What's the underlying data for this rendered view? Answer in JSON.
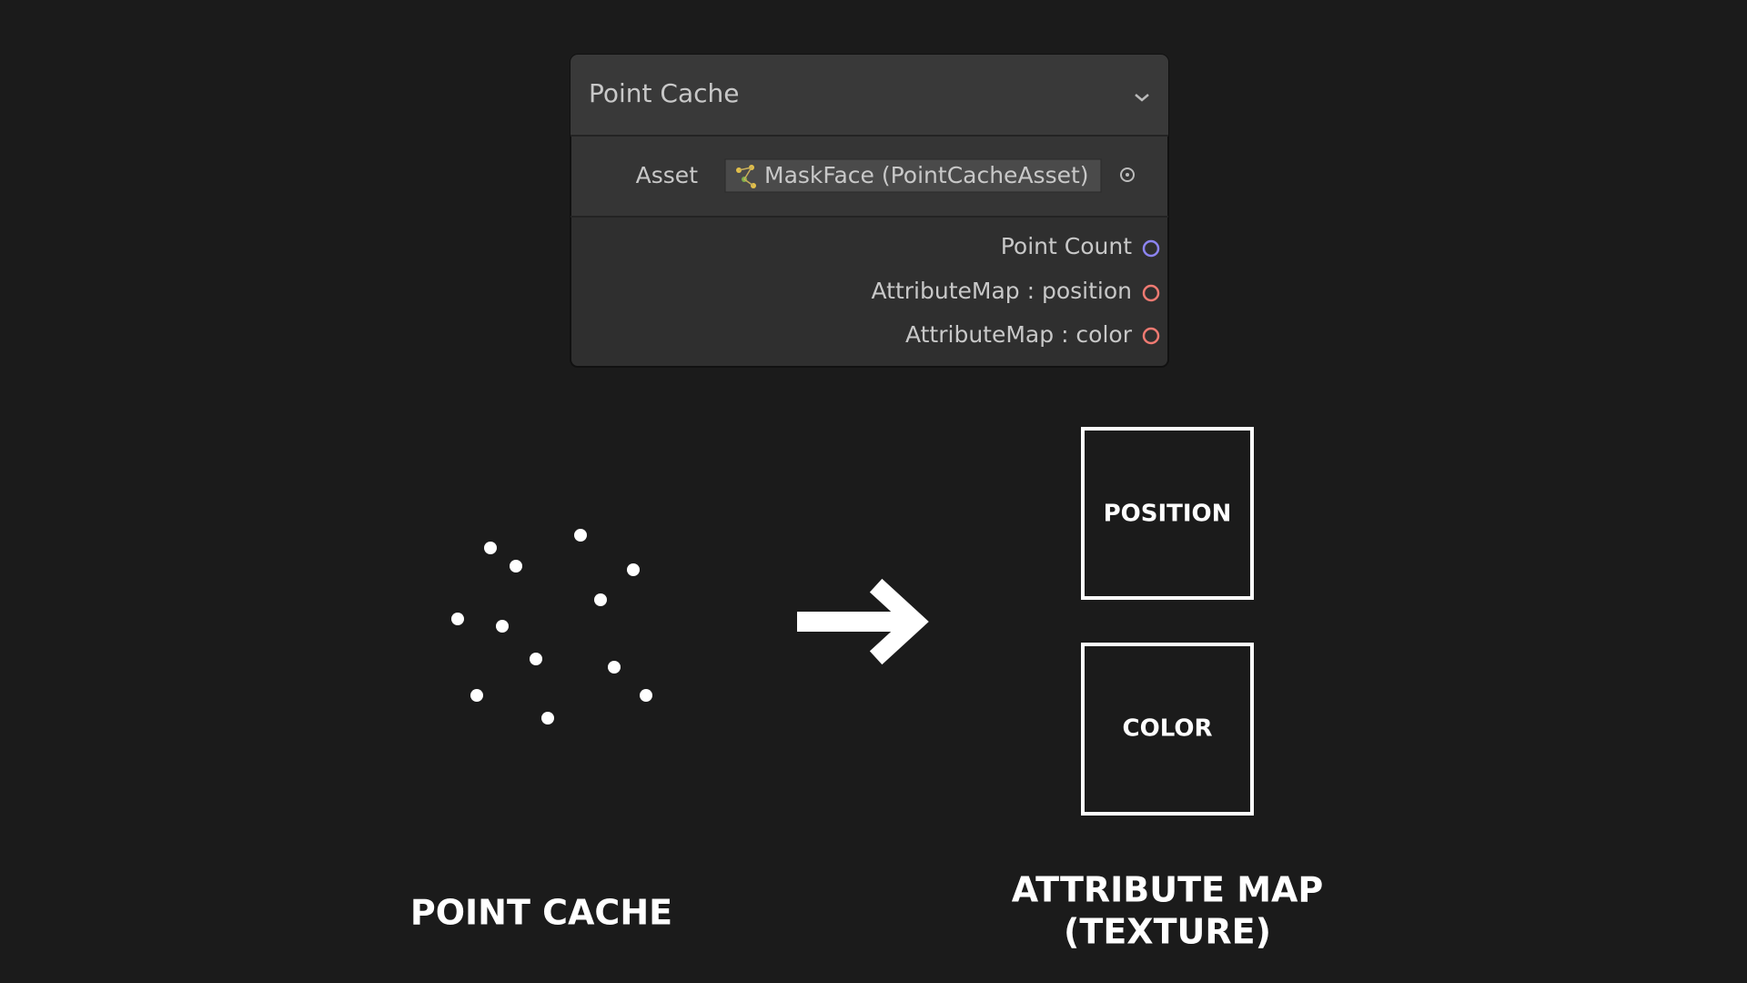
{
  "node": {
    "title": "Point Cache",
    "asset_label": "Asset",
    "asset_value": "MaskFace (PointCacheAsset)",
    "outputs": [
      "Point Count",
      "AttributeMap : position",
      "AttributeMap : color"
    ]
  },
  "diagram": {
    "left_label": "POINT CACHE",
    "boxes": [
      "POSITION",
      "COLOR"
    ],
    "right_label": [
      "ATTRIBUTE MAP",
      "(TEXTURE)"
    ]
  }
}
